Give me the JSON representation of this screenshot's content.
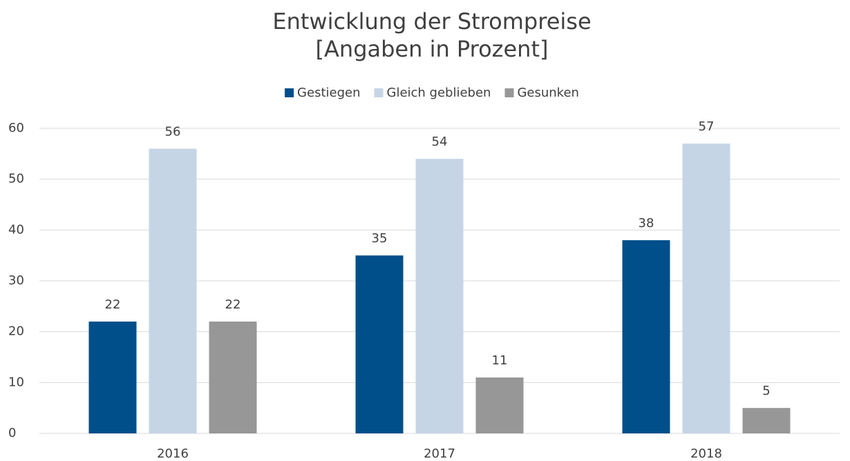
{
  "chart_data": {
    "type": "bar",
    "title": "Entwicklung der Strompreise",
    "subtitle": "[Angaben in Prozent]",
    "categories": [
      "2016",
      "2017",
      "2018"
    ],
    "series": [
      {
        "name": "Gestiegen",
        "color": "#004f8a",
        "values": [
          22,
          35,
          38
        ]
      },
      {
        "name": "Gleich geblieben",
        "color": "#c6d5e6",
        "values": [
          56,
          54,
          57
        ]
      },
      {
        "name": "Gesunken",
        "color": "#979797",
        "values": [
          22,
          11,
          5
        ]
      }
    ],
    "ylim": [
      0,
      60
    ],
    "yticks": [
      0,
      10,
      20,
      30,
      40,
      50,
      60
    ],
    "grid": true,
    "legend": "top"
  }
}
